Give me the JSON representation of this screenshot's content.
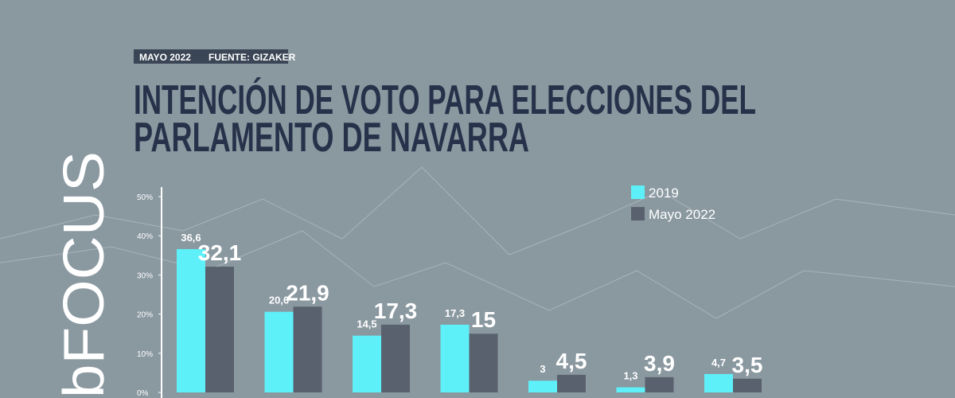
{
  "header": {
    "date": "MAYO 2022",
    "source": "FUENTE: GIZAKER",
    "logo": "bFOCUS"
  },
  "chart_data": {
    "type": "bar",
    "title": [
      "INTENCIÓN DE VOTO PARA ELECCIONES DEL",
      "PARLAMENTO DE NAVARRA"
    ],
    "categories": [
      null,
      null,
      null,
      null,
      null,
      null,
      null
    ],
    "series": [
      {
        "name": "2019",
        "color": "#5ef0f8",
        "values": [
          36.6,
          20.6,
          14.5,
          17.3,
          3,
          1.3,
          4.7
        ],
        "value_labels": [
          "36,6",
          "20,6",
          "14,5",
          "17,3",
          "3",
          "1,3",
          "4,7"
        ]
      },
      {
        "name": "Mayo 2022",
        "color": "#59616e",
        "values": [
          32.1,
          21.9,
          17.3,
          15,
          4.5,
          3.9,
          3.5
        ],
        "value_labels": [
          "32,1",
          "21,9",
          "17,3",
          "15",
          "4,5",
          "3,9",
          "3,5"
        ]
      }
    ],
    "ylim": [
      0,
      50
    ],
    "yticks": [
      {
        "value": 0,
        "label": "0%"
      },
      {
        "value": 10,
        "label": "10%"
      },
      {
        "value": 20,
        "label": "20%"
      },
      {
        "value": 30,
        "label": "30%"
      },
      {
        "value": 40,
        "label": "40%"
      },
      {
        "value": 50,
        "label": "50%"
      }
    ],
    "grid": false,
    "legend": "top-right"
  }
}
